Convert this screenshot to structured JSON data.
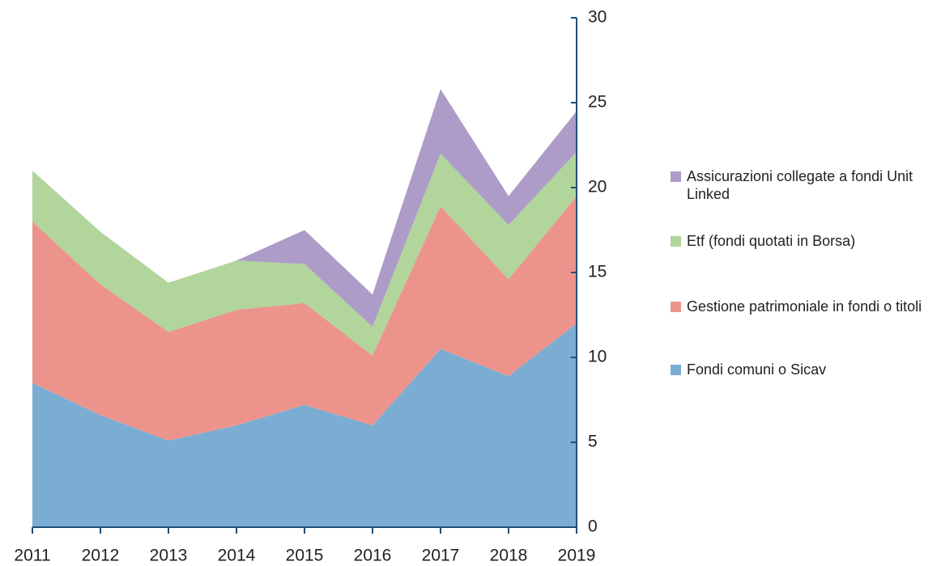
{
  "chart_data": {
    "type": "stacked_area",
    "x": [
      2011,
      2012,
      2013,
      2014,
      2015,
      2016,
      2017,
      2018,
      2019
    ],
    "series": [
      {
        "name": "Fondi comuni o Sicav",
        "color": "#7badd3",
        "values": [
          8.5,
          6.6,
          5.1,
          6.0,
          7.2,
          6.0,
          10.5,
          8.9,
          12.0
        ]
      },
      {
        "name": "Gestione patrimoniale in fondi o titoli",
        "color": "#ec948c",
        "values": [
          9.5,
          7.7,
          6.4,
          6.8,
          6.0,
          4.1,
          8.4,
          5.7,
          7.5
        ]
      },
      {
        "name": "Etf (fondi quotati in Borsa)",
        "color": "#b1d59b",
        "values": [
          3.0,
          3.1,
          2.9,
          2.9,
          2.3,
          1.7,
          3.1,
          3.2,
          2.6
        ]
      },
      {
        "name": "Assicurazioni collegate a fondi Unit Linked",
        "color": "#ad9cc8",
        "values": [
          0,
          0,
          0,
          0,
          2.0,
          1.9,
          3.8,
          1.7,
          2.4
        ]
      }
    ],
    "ylim": [
      0,
      30
    ],
    "yticks": [
      0,
      5,
      10,
      15,
      20,
      25,
      30
    ],
    "xlim": [
      2011,
      2019
    ],
    "xticks": [
      2011,
      2012,
      2013,
      2014,
      2015,
      2016,
      2017,
      2018,
      2019
    ],
    "axis_color": "#1f4e79"
  }
}
